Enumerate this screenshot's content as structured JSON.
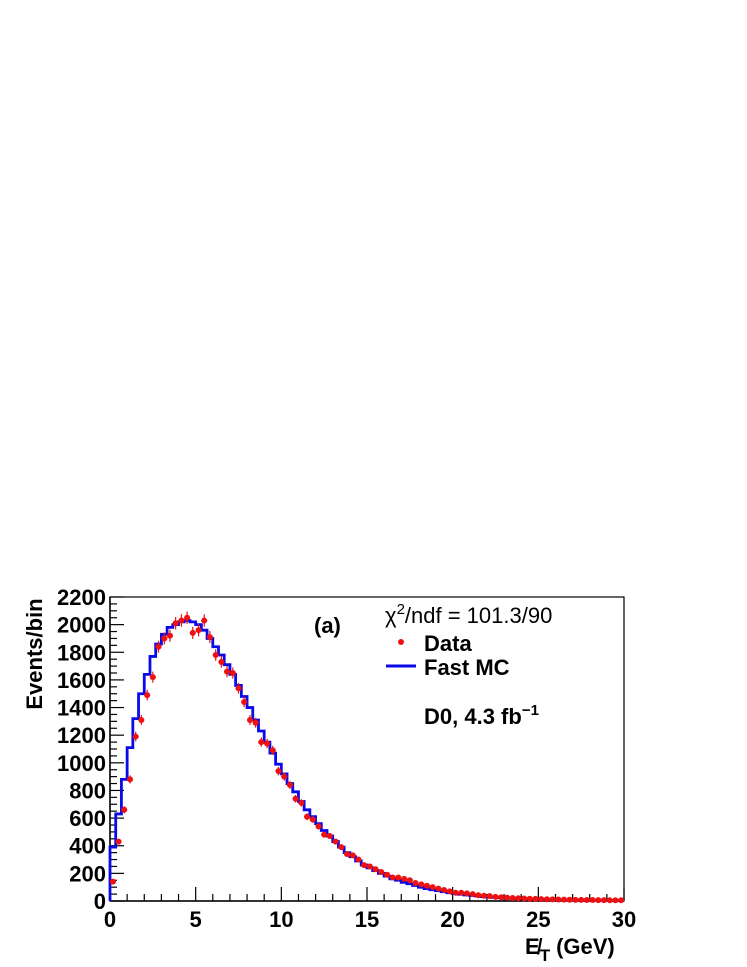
{
  "chart_data": {
    "type": "line",
    "xlabel": "E̸",
    "xlabel_sub": "T",
    "xlabel_unit": "(GeV)",
    "ylabel": "Events/bin",
    "xlim": [
      0,
      30
    ],
    "ylim": [
      0,
      2200
    ],
    "x_ticks": [
      "0",
      "5",
      "10",
      "15",
      "20",
      "25",
      "30"
    ],
    "y_ticks": [
      "0",
      "200",
      "400",
      "600",
      "800",
      "1000",
      "1200",
      "1400",
      "1600",
      "1800",
      "2000",
      "2200"
    ],
    "panel_label": "(a)",
    "chi2_label": "χ",
    "chi2_sup": "2",
    "chi2_rest": "/ndf = 101.3/90",
    "experiment": "D0, 4.3 fb",
    "experiment_sup": "−1",
    "grid": false,
    "legend_position": "top-right",
    "bin_width": 0.3333,
    "series": [
      {
        "name": "Data",
        "kind": "points-with-errors",
        "color": "#ee1111",
        "x_centers": [
          0.17,
          0.5,
          0.83,
          1.17,
          1.5,
          1.83,
          2.17,
          2.5,
          2.83,
          3.17,
          3.5,
          3.83,
          4.17,
          4.5,
          4.83,
          5.17,
          5.5,
          5.83,
          6.17,
          6.5,
          6.83,
          7.17,
          7.5,
          7.83,
          8.17,
          8.5,
          8.83,
          9.17,
          9.5,
          9.83,
          10.17,
          10.5,
          10.83,
          11.17,
          11.5,
          11.83,
          12.17,
          12.5,
          12.83,
          13.17,
          13.5,
          13.83,
          14.17,
          14.5,
          14.83,
          15.17,
          15.5,
          15.83,
          16.17,
          16.5,
          16.83,
          17.17,
          17.5,
          17.83,
          18.17,
          18.5,
          18.83,
          19.17,
          19.5,
          19.83,
          20.17,
          20.5,
          20.83,
          21.17,
          21.5,
          21.83,
          22.17,
          22.5,
          22.83,
          23.17,
          23.5,
          23.83,
          24.17,
          24.5,
          24.83,
          25.17,
          25.5,
          25.83,
          26.17,
          26.5,
          26.83,
          27.17,
          27.5,
          27.83,
          28.17,
          28.5,
          28.83,
          29.17,
          29.5,
          29.83
        ],
        "values": [
          140,
          430,
          660,
          880,
          1190,
          1310,
          1490,
          1620,
          1840,
          1900,
          1920,
          2010,
          2030,
          2050,
          1940,
          1960,
          2030,
          1910,
          1780,
          1730,
          1660,
          1650,
          1540,
          1440,
          1310,
          1290,
          1150,
          1140,
          1090,
          940,
          900,
          840,
          740,
          710,
          610,
          590,
          540,
          480,
          470,
          430,
          390,
          340,
          330,
          300,
          260,
          250,
          230,
          210,
          190,
          170,
          170,
          160,
          150,
          130,
          120,
          110,
          100,
          90,
          80,
          70,
          60,
          60,
          55,
          50,
          42,
          38,
          35,
          30,
          27,
          24,
          22,
          20,
          18,
          16,
          15,
          14,
          13,
          12,
          11,
          10,
          9,
          8,
          8,
          7,
          7,
          6,
          6,
          5,
          5,
          5
        ]
      },
      {
        "name": "Fast MC",
        "kind": "step-histogram",
        "color": "#0a0ae8",
        "bin_edges_start": 0,
        "values": [
          390,
          630,
          880,
          1110,
          1320,
          1500,
          1640,
          1770,
          1860,
          1930,
          1980,
          2000,
          2020,
          2030,
          2020,
          2000,
          1960,
          1900,
          1840,
          1780,
          1710,
          1640,
          1560,
          1480,
          1400,
          1310,
          1230,
          1150,
          1070,
          990,
          920,
          850,
          790,
          720,
          660,
          610,
          560,
          510,
          470,
          430,
          390,
          350,
          320,
          290,
          260,
          240,
          220,
          200,
          180,
          160,
          150,
          135,
          125,
          112,
          100,
          90,
          82,
          74,
          67,
          60,
          54,
          49,
          44,
          40,
          36,
          32,
          29,
          26,
          24,
          22,
          20,
          18,
          16,
          15,
          13,
          12,
          11,
          10,
          9,
          8,
          7,
          7,
          6,
          6,
          5,
          5,
          4,
          4,
          4,
          3
        ]
      }
    ]
  }
}
